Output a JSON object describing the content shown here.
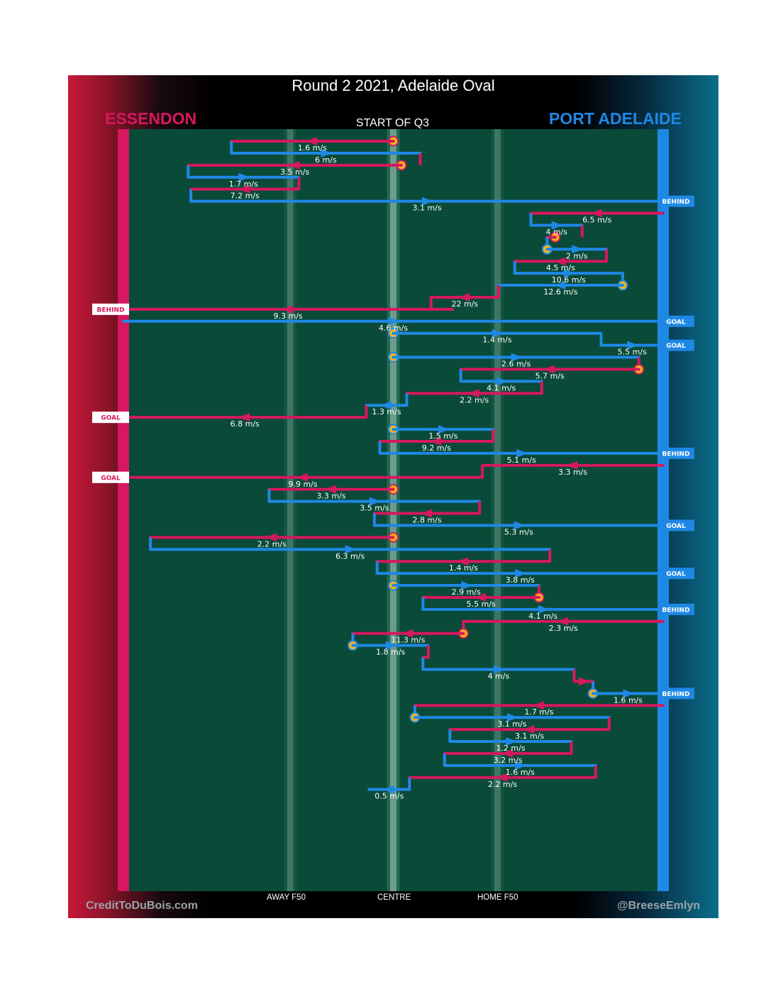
{
  "poster": {
    "title": "Round 2 2021, Adelaide Oval",
    "home_team": "ESSENDON",
    "away_team": "PORT ADELAIDE",
    "period": "START OF Q3",
    "credit_left": "CreditToDuBois.com",
    "credit_right": "@BreeseEmlyn"
  },
  "chart_data": {
    "type": "line",
    "title": "Round 2 2021, Adelaide Oval",
    "subtitle": "START OF Q3",
    "colors": {
      "essendon": "#d6185e",
      "port_adelaide": "#1e88e5",
      "stoppage": "#f2b41e",
      "field": "#0a4a38"
    },
    "x_axis": {
      "range": [
        0,
        100
      ],
      "units": "ground position, 0 = Essendon goal line, 100 = Port Adelaide goal line",
      "ticks": [
        {
          "label": "AWAY F50",
          "value": 30.9
        },
        {
          "label": "CENTRE",
          "value": 50
        },
        {
          "label": "HOME F50",
          "value": 69.3
        }
      ]
    },
    "sequence_order": "top to bottom; line colour = team in possession, arrow = direction of ball movement",
    "chains": [
      {
        "team": "essendon",
        "start": 50.0,
        "stoppage_start": true,
        "legs": [
          {
            "to": 20.0,
            "speed": "1.6 m/s"
          }
        ]
      },
      {
        "team": "port_adelaide",
        "start": 20.0,
        "legs": [
          {
            "to": 55.0,
            "speed": "6 m/s"
          }
        ]
      },
      {
        "team": "essendon",
        "start": 51.5,
        "stoppage_start": true,
        "legs": [
          {
            "to": 12.0,
            "speed": "3.5 m/s"
          }
        ]
      },
      {
        "team": "port_adelaide",
        "start": 12.0,
        "legs": [
          {
            "to": 32.5,
            "speed": "1.7 m/s"
          }
        ]
      },
      {
        "team": "essendon",
        "start": 32.5,
        "legs": [
          {
            "to": 12.5,
            "speed": "7.2 m/s"
          }
        ]
      },
      {
        "team": "port_adelaide",
        "start": 12.5,
        "legs": [
          {
            "to": 100,
            "speed": "3.1 m/s"
          }
        ],
        "outcome": "BEHIND"
      },
      {
        "team": "essendon",
        "start": 100,
        "legs": [
          {
            "to": 75.5,
            "speed": "6.5 m/s"
          }
        ]
      },
      {
        "team": "port_adelaide",
        "start": 75.5,
        "legs": [
          {
            "to": 85.0,
            "speed": "4 m/s"
          }
        ]
      },
      {
        "team": "essendon",
        "start": 80.0,
        "stoppage_start": true,
        "legs": [
          {
            "to": 78.5,
            "speed": ""
          }
        ]
      },
      {
        "team": "port_adelaide",
        "start": 78.5,
        "stoppage_start": true,
        "legs": [
          {
            "to": 89.5,
            "speed": "2 m/s"
          }
        ]
      },
      {
        "team": "essendon",
        "start": 89.5,
        "legs": [
          {
            "to": 72.5,
            "speed": "4.5 m/s"
          }
        ]
      },
      {
        "team": "port_adelaide",
        "start": 72.5,
        "legs": [
          {
            "to": 92.5,
            "speed": "10.6 m/s"
          }
        ]
      },
      {
        "team": "port_adelaide",
        "start": 92.5,
        "stoppage_start": true,
        "legs": [
          {
            "to": 69.5,
            "speed": "12.6 m/s"
          }
        ]
      },
      {
        "team": "essendon",
        "start": 69.5,
        "legs": [
          {
            "to": 57.0,
            "speed": "22 m/s"
          }
        ]
      },
      {
        "team": "essendon",
        "start": 61.0,
        "legs": [
          {
            "to": 0,
            "speed": "9.3 m/s"
          }
        ],
        "outcome": "BEHIND"
      },
      {
        "team": "port_adelaide",
        "start": 0,
        "legs": [
          {
            "to": 100,
            "speed": "4.6 m/s"
          }
        ],
        "outcome": "GOAL"
      },
      {
        "team": "port_adelaide",
        "start": 50.0,
        "stoppage_start": true,
        "legs": [
          {
            "to": 88.5,
            "speed": "1.4 m/s"
          },
          {
            "to": 100,
            "speed": "5.5 m/s"
          }
        ],
        "outcome": "GOAL"
      },
      {
        "team": "port_adelaide",
        "start": 50.0,
        "stoppage_start": true,
        "legs": [
          {
            "to": 95.5,
            "speed": "2.6 m/s"
          }
        ]
      },
      {
        "team": "essendon",
        "start": 95.5,
        "stoppage_start": true,
        "legs": [
          {
            "to": 62.5,
            "speed": "5.7 m/s"
          }
        ]
      },
      {
        "team": "port_adelaide",
        "start": 62.5,
        "legs": [
          {
            "to": 77.5,
            "speed": "4.1 m/s"
          }
        ]
      },
      {
        "team": "essendon",
        "start": 77.5,
        "legs": [
          {
            "to": 52.5,
            "speed": "2.2 m/s"
          }
        ]
      },
      {
        "team": "port_adelaide",
        "start": 52.5,
        "legs": [
          {
            "to": 45.0,
            "speed": "1.3 m/s"
          }
        ]
      },
      {
        "team": "essendon",
        "start": 45.0,
        "legs": [
          {
            "to": 0,
            "speed": "6.8 m/s"
          }
        ],
        "outcome": "GOAL"
      },
      {
        "team": "port_adelaide",
        "start": 50.0,
        "stoppage_start": true,
        "legs": [
          {
            "to": 68.5,
            "speed": "1.5 m/s"
          }
        ]
      },
      {
        "team": "essendon",
        "start": 68.5,
        "legs": [
          {
            "to": 47.5,
            "speed": "9.2 m/s"
          }
        ]
      },
      {
        "team": "port_adelaide",
        "start": 47.5,
        "legs": [
          {
            "to": 100,
            "speed": "5.1 m/s"
          }
        ],
        "outcome": "BEHIND"
      },
      {
        "team": "essendon",
        "start": 100,
        "legs": [
          {
            "to": 66.5,
            "speed": "3.3 m/s"
          },
          {
            "to": 0,
            "speed": "9.9 m/s"
          }
        ],
        "outcome": "GOAL"
      },
      {
        "team": "essendon",
        "start": 50.0,
        "stoppage_start": true,
        "legs": [
          {
            "to": 27.0,
            "speed": "3.3 m/s"
          }
        ]
      },
      {
        "team": "port_adelaide",
        "start": 27.0,
        "legs": [
          {
            "to": 66.0,
            "speed": "3.5 m/s"
          }
        ]
      },
      {
        "team": "essendon",
        "start": 66.0,
        "legs": [
          {
            "to": 46.5,
            "speed": "2.8 m/s"
          }
        ]
      },
      {
        "team": "port_adelaide",
        "start": 46.5,
        "legs": [
          {
            "to": 100,
            "speed": "5.3 m/s"
          }
        ],
        "outcome": "GOAL"
      },
      {
        "team": "essendon",
        "start": 50.0,
        "stoppage_start": true,
        "legs": [
          {
            "to": 5.0,
            "speed": "2.2 m/s"
          }
        ]
      },
      {
        "team": "port_adelaide",
        "start": 5.0,
        "legs": [
          {
            "to": 79.0,
            "speed": "6.3 m/s"
          }
        ]
      },
      {
        "team": "essendon",
        "start": 79.0,
        "legs": [
          {
            "to": 47.0,
            "speed": "1.4 m/s"
          }
        ]
      },
      {
        "team": "port_adelaide",
        "start": 47.0,
        "legs": [
          {
            "to": 100,
            "speed": "3.8 m/s"
          }
        ],
        "outcome": "GOAL"
      },
      {
        "team": "port_adelaide",
        "start": 50.0,
        "stoppage_start": true,
        "legs": [
          {
            "to": 77.0,
            "speed": "2.9 m/s"
          }
        ]
      },
      {
        "team": "essendon",
        "start": 77.0,
        "stoppage_start": true,
        "legs": [
          {
            "to": 55.5,
            "speed": "5.5 m/s"
          }
        ]
      },
      {
        "team": "port_adelaide",
        "start": 55.5,
        "legs": [
          {
            "to": 100,
            "speed": "4.1 m/s"
          }
        ],
        "outcome": "BEHIND"
      },
      {
        "team": "essendon",
        "start": 100,
        "legs": [
          {
            "to": 63.0,
            "speed": "2.3 m/s"
          }
        ]
      },
      {
        "team": "essendon",
        "start": 63.0,
        "stoppage_start": true,
        "legs": [
          {
            "to": 42.5,
            "speed": "11.3 m/s"
          }
        ]
      },
      {
        "team": "port_adelaide",
        "start": 42.5,
        "stoppage_start": true,
        "legs": [
          {
            "to": 56.5,
            "speed": "1.8 m/s"
          }
        ]
      },
      {
        "team": "essendon",
        "start": 56.5,
        "legs": [
          {
            "to": 55.5,
            "speed": ""
          }
        ]
      },
      {
        "team": "port_adelaide",
        "start": 55.5,
        "legs": [
          {
            "to": 83.5,
            "speed": "4 m/s"
          }
        ]
      },
      {
        "team": "essendon",
        "start": 83.5,
        "legs": [
          {
            "to": 87.0,
            "speed": ""
          }
        ]
      },
      {
        "team": "port_adelaide",
        "start": 87.0,
        "stoppage_start": true,
        "legs": [
          {
            "to": 100,
            "speed": "1.6 m/s"
          }
        ],
        "outcome": "BEHIND"
      },
      {
        "team": "essendon",
        "start": 100,
        "legs": [
          {
            "to": 54.0,
            "speed": "1.7 m/s"
          }
        ]
      },
      {
        "team": "port_adelaide",
        "start": 54.0,
        "stoppage_start": true,
        "legs": [
          {
            "to": 90.0,
            "speed": "3.1 m/s"
          }
        ]
      },
      {
        "team": "essendon",
        "start": 90.0,
        "legs": [
          {
            "to": 60.5,
            "speed": "3.1 m/s"
          }
        ]
      },
      {
        "team": "port_adelaide",
        "start": 60.5,
        "legs": [
          {
            "to": 83.0,
            "speed": "1.2 m/s"
          }
        ]
      },
      {
        "team": "essendon",
        "start": 83.0,
        "legs": [
          {
            "to": 59.5,
            "speed": "3.2 m/s"
          }
        ]
      },
      {
        "team": "port_adelaide",
        "start": 59.5,
        "legs": [
          {
            "to": 87.5,
            "speed": "1.6 m/s"
          }
        ]
      },
      {
        "team": "essendon",
        "start": 87.5,
        "legs": [
          {
            "to": 53.0,
            "speed": "2.2 m/s"
          }
        ]
      },
      {
        "team": "port_adelaide",
        "start": 53.0,
        "legs": [
          {
            "to": 45.5,
            "speed": "0.5 m/s"
          }
        ]
      }
    ]
  }
}
